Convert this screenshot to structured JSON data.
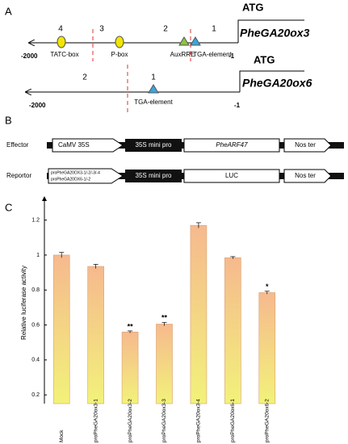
{
  "panels": {
    "a": "A",
    "b": "B",
    "c": "C"
  },
  "promoters": [
    {
      "gene": "PheGA20ox3",
      "atg": "ATG",
      "start": "-2000",
      "end": "-1",
      "regions": [
        "4",
        "3",
        "2",
        "1"
      ],
      "elements": [
        "TATC-box",
        "P-box",
        "AuxRRE",
        "TGA-element"
      ]
    },
    {
      "gene": "PheGA20ox6",
      "atg": "ATG",
      "start": "-2000",
      "end": "-1",
      "regions": [
        "2",
        "1"
      ],
      "elements": [
        "TGA-element"
      ]
    }
  ],
  "constructs": [
    {
      "label": "Effector",
      "parts": [
        "CaMV 35S",
        "35S mini pro",
        "PheARF47",
        "Nos ter"
      ]
    },
    {
      "label": "Reportor",
      "parts": [
        [
          "proPheGA20OX3-1/-2/-3/-4",
          "proPheGA20OX6-1/-2"
        ],
        "35S mini pro",
        "LUC",
        "Nos ter"
      ]
    }
  ],
  "chart_data": {
    "type": "bar",
    "ylabel": "Relative luciferase activity",
    "categories": [
      "Mock",
      "proPheGA20ox3-1",
      "proPheGA20ox3-2",
      "proPheGA20ox3-3",
      "proPheGA20ox3-4",
      "proPheGA20ox6-1",
      "proPheGA20ox6-2"
    ],
    "values": [
      1.0,
      0.935,
      0.56,
      0.605,
      1.17,
      0.985,
      0.785
    ],
    "errors": [
      0.015,
      0.012,
      0.006,
      0.01,
      0.015,
      0.006,
      0.008
    ],
    "significance": [
      null,
      null,
      "**",
      "**",
      null,
      null,
      "*"
    ],
    "ylim": [
      0.15,
      1.3
    ],
    "yticks": [
      0.2,
      0.4,
      0.6,
      0.8,
      1.0,
      1.2
    ],
    "color_top": "#f6b98e",
    "color_bottom": "#f2f27a"
  }
}
